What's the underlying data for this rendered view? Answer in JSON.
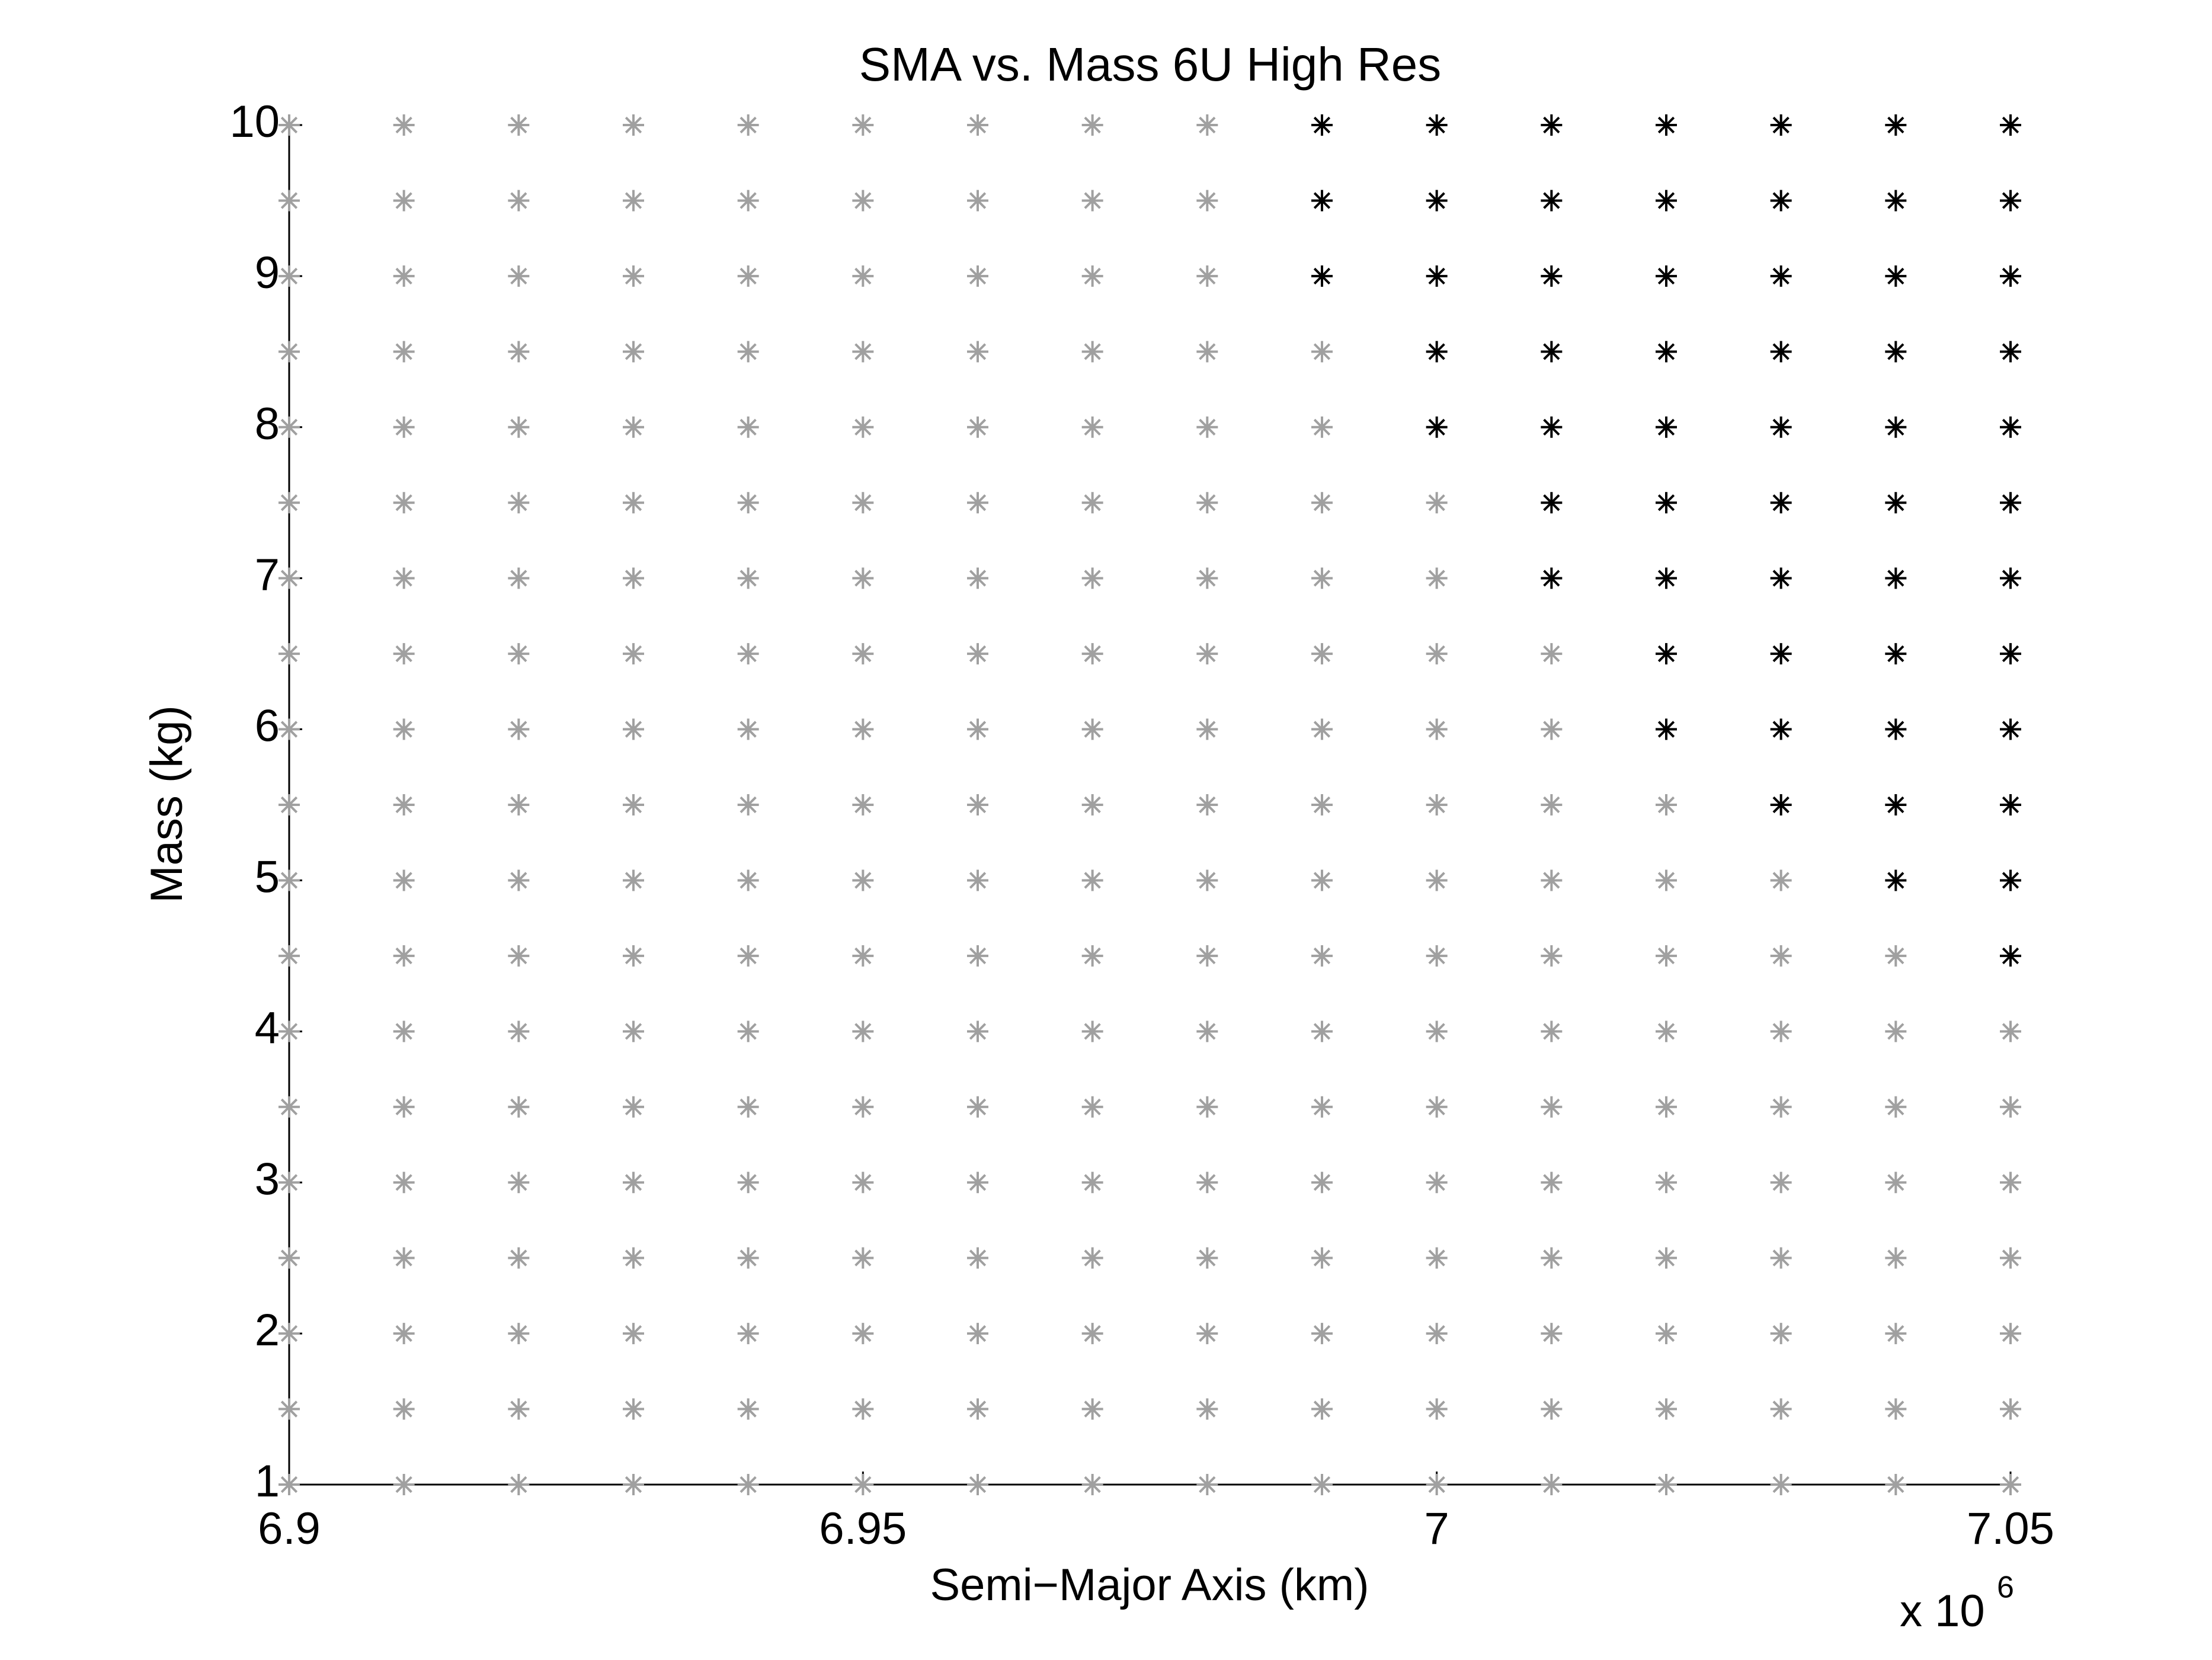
{
  "chart_data": {
    "type": "scatter",
    "title": "SMA vs. Mass 6U High Res",
    "xlabel": "Semi−Major Axis (km)",
    "ylabel": "Mass (kg)",
    "x_multiplier_base": "x 10",
    "x_multiplier_exponent": "6",
    "xlim": [
      6.9,
      7.05
    ],
    "xticks": [
      6.9,
      6.95,
      7,
      7.05
    ],
    "ylim": [
      1,
      10
    ],
    "yticks": [
      1,
      2,
      3,
      4,
      5,
      6,
      7,
      8,
      9,
      10
    ],
    "grid": false,
    "series": [
      {
        "color": "#a0a0a0",
        "x": [
          6.9,
          6.9,
          6.9,
          6.9,
          6.9,
          6.9,
          6.9,
          6.9,
          6.9,
          6.9,
          6.9,
          6.9,
          6.9,
          6.9,
          6.9,
          6.9,
          6.9,
          6.9,
          6.9,
          6.91,
          6.91,
          6.91,
          6.91,
          6.91,
          6.91,
          6.91,
          6.91,
          6.91,
          6.91,
          6.91,
          6.91,
          6.91,
          6.91,
          6.91,
          6.91,
          6.91,
          6.91,
          6.91,
          6.92,
          6.92,
          6.92,
          6.92,
          6.92,
          6.92,
          6.92,
          6.92,
          6.92,
          6.92,
          6.92,
          6.92,
          6.92,
          6.92,
          6.92,
          6.92,
          6.92,
          6.92,
          6.92,
          6.93,
          6.93,
          6.93,
          6.93,
          6.93,
          6.93,
          6.93,
          6.93,
          6.93,
          6.93,
          6.93,
          6.93,
          6.93,
          6.93,
          6.93,
          6.93,
          6.93,
          6.93,
          6.93,
          6.94,
          6.94,
          6.94,
          6.94,
          6.94,
          6.94,
          6.94,
          6.94,
          6.94,
          6.94,
          6.94,
          6.94,
          6.94,
          6.94,
          6.94,
          6.94,
          6.94,
          6.94,
          6.94,
          6.95,
          6.95,
          6.95,
          6.95,
          6.95,
          6.95,
          6.95,
          6.95,
          6.95,
          6.95,
          6.95,
          6.95,
          6.95,
          6.95,
          6.95,
          6.95,
          6.95,
          6.95,
          6.95,
          6.96,
          6.96,
          6.96,
          6.96,
          6.96,
          6.96,
          6.96,
          6.96,
          6.96,
          6.96,
          6.96,
          6.96,
          6.96,
          6.96,
          6.96,
          6.96,
          6.96,
          6.96,
          6.96,
          6.97,
          6.97,
          6.97,
          6.97,
          6.97,
          6.97,
          6.97,
          6.97,
          6.97,
          6.97,
          6.97,
          6.97,
          6.97,
          6.97,
          6.97,
          6.97,
          6.97,
          6.97,
          6.97,
          6.98,
          6.98,
          6.98,
          6.98,
          6.98,
          6.98,
          6.98,
          6.98,
          6.98,
          6.98,
          6.98,
          6.98,
          6.98,
          6.98,
          6.98,
          6.98,
          6.98,
          6.98,
          6.98,
          6.99,
          6.99,
          6.99,
          6.99,
          6.99,
          6.99,
          6.99,
          6.99,
          6.99,
          6.99,
          6.99,
          6.99,
          6.99,
          6.99,
          6.99,
          6.99,
          7,
          7,
          7,
          7,
          7,
          7,
          7,
          7,
          7,
          7,
          7,
          7,
          7,
          7,
          7.01,
          7.01,
          7.01,
          7.01,
          7.01,
          7.01,
          7.01,
          7.01,
          7.01,
          7.01,
          7.01,
          7.01,
          7.02,
          7.02,
          7.02,
          7.02,
          7.02,
          7.02,
          7.02,
          7.02,
          7.02,
          7.02,
          7.03,
          7.03,
          7.03,
          7.03,
          7.03,
          7.03,
          7.03,
          7.03,
          7.03,
          7.04,
          7.04,
          7.04,
          7.04,
          7.04,
          7.04,
          7.04,
          7.04,
          7.05,
          7.05,
          7.05,
          7.05,
          7.05,
          7.05,
          7.05
        ],
        "y": [
          1,
          1.5,
          2,
          2.5,
          3,
          3.5,
          4,
          4.5,
          5,
          5.5,
          6,
          6.5,
          7,
          7.5,
          8,
          8.5,
          9,
          9.5,
          10,
          1,
          1.5,
          2,
          2.5,
          3,
          3.5,
          4,
          4.5,
          5,
          5.5,
          6,
          6.5,
          7,
          7.5,
          8,
          8.5,
          9,
          9.5,
          10,
          1,
          1.5,
          2,
          2.5,
          3,
          3.5,
          4,
          4.5,
          5,
          5.5,
          6,
          6.5,
          7,
          7.5,
          8,
          8.5,
          9,
          9.5,
          10,
          1,
          1.5,
          2,
          2.5,
          3,
          3.5,
          4,
          4.5,
          5,
          5.5,
          6,
          6.5,
          7,
          7.5,
          8,
          8.5,
          9,
          9.5,
          10,
          1,
          1.5,
          2,
          2.5,
          3,
          3.5,
          4,
          4.5,
          5,
          5.5,
          6,
          6.5,
          7,
          7.5,
          8,
          8.5,
          9,
          9.5,
          10,
          1,
          1.5,
          2,
          2.5,
          3,
          3.5,
          4,
          4.5,
          5,
          5.5,
          6,
          6.5,
          7,
          7.5,
          8,
          8.5,
          9,
          9.5,
          10,
          1,
          1.5,
          2,
          2.5,
          3,
          3.5,
          4,
          4.5,
          5,
          5.5,
          6,
          6.5,
          7,
          7.5,
          8,
          8.5,
          9,
          9.5,
          10,
          1,
          1.5,
          2,
          2.5,
          3,
          3.5,
          4,
          4.5,
          5,
          5.5,
          6,
          6.5,
          7,
          7.5,
          8,
          8.5,
          9,
          9.5,
          10,
          1,
          1.5,
          2,
          2.5,
          3,
          3.5,
          4,
          4.5,
          5,
          5.5,
          6,
          6.5,
          7,
          7.5,
          8,
          8.5,
          9,
          9.5,
          10,
          1,
          1.5,
          2,
          2.5,
          3,
          3.5,
          4,
          4.5,
          5,
          5.5,
          6,
          6.5,
          7,
          7.5,
          8,
          8.5,
          1,
          1.5,
          2,
          2.5,
          3,
          3.5,
          4,
          4.5,
          5,
          5.5,
          6,
          6.5,
          7,
          7.5,
          1,
          1.5,
          2,
          2.5,
          3,
          3.5,
          4,
          4.5,
          5,
          5.5,
          6,
          6.5,
          1,
          1.5,
          2,
          2.5,
          3,
          3.5,
          4,
          4.5,
          5,
          5.5,
          1,
          1.5,
          2,
          2.5,
          3,
          3.5,
          4,
          4.5,
          5,
          1,
          1.5,
          2,
          2.5,
          3,
          3.5,
          4,
          4.5,
          1,
          1.5,
          2,
          2.5,
          3,
          3.5,
          4
        ]
      },
      {
        "color": "#000000",
        "x": [
          6.99,
          6.99,
          6.99,
          7,
          7,
          7,
          7,
          7,
          7.01,
          7.01,
          7.01,
          7.01,
          7.01,
          7.01,
          7.01,
          7.02,
          7.02,
          7.02,
          7.02,
          7.02,
          7.02,
          7.02,
          7.02,
          7.02,
          7.03,
          7.03,
          7.03,
          7.03,
          7.03,
          7.03,
          7.03,
          7.03,
          7.03,
          7.03,
          7.04,
          7.04,
          7.04,
          7.04,
          7.04,
          7.04,
          7.04,
          7.04,
          7.04,
          7.04,
          7.04,
          7.05,
          7.05,
          7.05,
          7.05,
          7.05,
          7.05,
          7.05,
          7.05,
          7.05,
          7.05,
          7.05,
          7.05
        ],
        "y": [
          9,
          9.5,
          10,
          8,
          8.5,
          9,
          9.5,
          10,
          7,
          7.5,
          8,
          8.5,
          9,
          9.5,
          10,
          6,
          6.5,
          7,
          7.5,
          8,
          8.5,
          9,
          9.5,
          10,
          5.5,
          6,
          6.5,
          7,
          7.5,
          8,
          8.5,
          9,
          9.5,
          10,
          5,
          5.5,
          6,
          6.5,
          7,
          7.5,
          8,
          8.5,
          9,
          9.5,
          10,
          4.5,
          5,
          5.5,
          6,
          6.5,
          7,
          7.5,
          8,
          8.5,
          9,
          9.5,
          10
        ]
      }
    ]
  }
}
